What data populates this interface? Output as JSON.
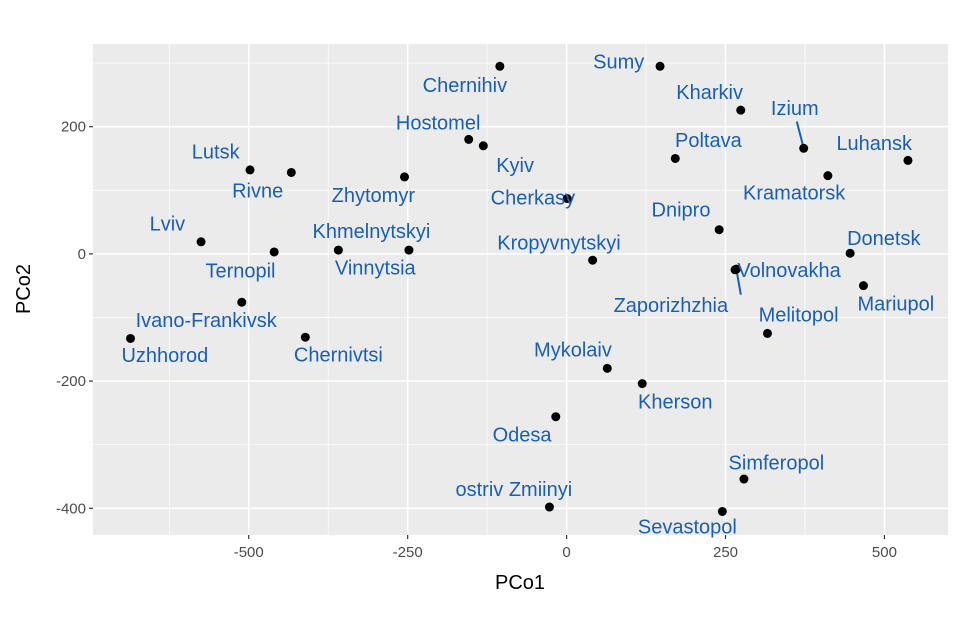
{
  "colors": {
    "panel": "#ebebeb",
    "grid_major": "#ffffff",
    "point": "#000000",
    "label": "#1a5fb4"
  },
  "chart_data": {
    "type": "scatter",
    "title": "",
    "xlabel": "PCo1",
    "ylabel": "PCo2",
    "xlim": [
      -745,
      600
    ],
    "ylim": [
      -442,
      330
    ],
    "xticks": [
      -500,
      -250,
      0,
      250,
      500
    ],
    "yticks": [
      -400,
      -200,
      0,
      200
    ],
    "xtick_labels": [
      "-500",
      "-250",
      "0",
      "250",
      "500"
    ],
    "ytick_labels": [
      "-400",
      "-200",
      "0",
      "200"
    ],
    "grid": true,
    "legend": "none",
    "points": [
      {
        "label": "Chernihiv",
        "x": -105,
        "y": 295,
        "lx": -160,
        "ly": 263,
        "leader": false
      },
      {
        "label": "Sumy",
        "x": 147,
        "y": 295,
        "lx": 82,
        "ly": 300,
        "leader": false
      },
      {
        "label": "Kharkiv",
        "x": 274,
        "y": 226,
        "lx": 225,
        "ly": 252,
        "leader": false
      },
      {
        "label": "Izium",
        "x": 373,
        "y": 166,
        "lx": 359,
        "ly": 227,
        "leader": true
      },
      {
        "label": "Hostomel",
        "x": -154,
        "y": 180,
        "lx": -202,
        "ly": 204,
        "leader": false
      },
      {
        "label": "Kyiv",
        "x": -131,
        "y": 170,
        "lx": -81,
        "ly": 137,
        "leader": false
      },
      {
        "label": "Lutsk",
        "x": -498,
        "y": 132,
        "lx": -552,
        "ly": 158,
        "leader": false
      },
      {
        "label": "Rivne",
        "x": -433,
        "y": 128,
        "lx": -486,
        "ly": 97,
        "leader": false
      },
      {
        "label": "Poltava",
        "x": 171,
        "y": 150,
        "lx": 223,
        "ly": 176,
        "leader": false
      },
      {
        "label": "Luhansk",
        "x": 537,
        "y": 147,
        "lx": 484,
        "ly": 172,
        "leader": false
      },
      {
        "label": "Zhytomyr",
        "x": -255,
        "y": 121,
        "lx": -304,
        "ly": 90,
        "leader": false
      },
      {
        "label": "Kramatorsk",
        "x": 411,
        "y": 123,
        "lx": 358,
        "ly": 94,
        "leader": false
      },
      {
        "label": "Cherkasy",
        "x": 1,
        "y": 87,
        "lx": -53,
        "ly": 86,
        "leader": false
      },
      {
        "label": "Lviv",
        "x": -575,
        "y": 19,
        "lx": -628,
        "ly": 45,
        "leader": false
      },
      {
        "label": "Dnipro",
        "x": 240,
        "y": 38,
        "lx": 180,
        "ly": 67,
        "leader": false
      },
      {
        "label": "Khmelnytskyi",
        "x": -359,
        "y": 6,
        "lx": -307,
        "ly": 33,
        "leader": false
      },
      {
        "label": "Ternopil",
        "x": -460,
        "y": 3,
        "lx": -513,
        "ly": -29,
        "leader": false
      },
      {
        "label": "Vinnytsia",
        "x": -248,
        "y": 6,
        "lx": -301,
        "ly": -24,
        "leader": false
      },
      {
        "label": "Kropyvnytskyi",
        "x": 41,
        "y": -10,
        "lx": -12,
        "ly": 15,
        "leader": false
      },
      {
        "label": "Volnovakha",
        "x": 265,
        "y": -25,
        "lx": 350,
        "ly": -28,
        "leader": false
      },
      {
        "label": "Zaporizhzhia",
        "x": 267,
        "y": -24,
        "lx": 164,
        "ly": -83,
        "leader": true
      },
      {
        "label": "Donetsk",
        "x": 446,
        "y": 1,
        "lx": 499,
        "ly": 22,
        "leader": false
      },
      {
        "label": "Mariupol",
        "x": 467,
        "y": -50,
        "lx": 518,
        "ly": -81,
        "leader": false
      },
      {
        "label": "Melitopol",
        "x": 316,
        "y": -125,
        "lx": 365,
        "ly": -98,
        "leader": false
      },
      {
        "label": "Ivano-Frankivsk",
        "x": -511,
        "y": -76,
        "lx": -567,
        "ly": -107,
        "leader": false
      },
      {
        "label": "Chernivtsi",
        "x": -411,
        "y": -131,
        "lx": -359,
        "ly": -161,
        "leader": false
      },
      {
        "label": "Uzhhorod",
        "x": -686,
        "y": -133,
        "lx": -632,
        "ly": -162,
        "leader": false
      },
      {
        "label": "Mykolaiv",
        "x": 64,
        "y": -180,
        "lx": 10,
        "ly": -153,
        "leader": false
      },
      {
        "label": "Kherson",
        "x": 119,
        "y": -204,
        "lx": 171,
        "ly": -235,
        "leader": false
      },
      {
        "label": "Odesa",
        "x": -17,
        "y": -256,
        "lx": -70,
        "ly": -287,
        "leader": false
      },
      {
        "label": "Simferopol",
        "x": 279,
        "y": -354,
        "lx": 330,
        "ly": -331,
        "leader": false
      },
      {
        "label": "ostriv Zmiinyi",
        "x": -27,
        "y": -398,
        "lx": -83,
        "ly": -372,
        "leader": false
      },
      {
        "label": "Sevastopol",
        "x": 245,
        "y": -405,
        "lx": 190,
        "ly": -431,
        "leader": false
      }
    ]
  }
}
